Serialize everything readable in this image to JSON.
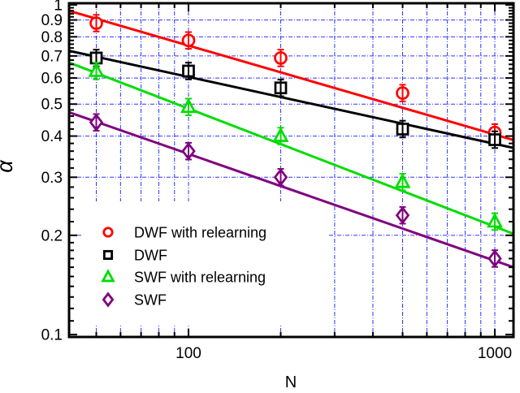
{
  "figure": {
    "background": "#ffffff"
  },
  "chart_data": {
    "type": "scatter",
    "title": "",
    "xlabel": "N",
    "ylabel": "α",
    "x_scale": "log",
    "y_scale": "log",
    "x_range": [
      40.8,
      1155
    ],
    "y_range": [
      0.098,
      1.01
    ],
    "x_major_ticks": [
      {
        "value": 100,
        "label": "100"
      },
      {
        "value": 1000,
        "label": "1000"
      }
    ],
    "x_minor_ticks": [
      50,
      60,
      70,
      80,
      90,
      200,
      300,
      400,
      500,
      600,
      700,
      800,
      900
    ],
    "y_major_ticks": [
      {
        "value": 1.0,
        "label": "1"
      },
      {
        "value": 0.9,
        "label": "0.9"
      },
      {
        "value": 0.8,
        "label": "0.8"
      },
      {
        "value": 0.7,
        "label": "0.7"
      },
      {
        "value": 0.6,
        "label": "0.6"
      },
      {
        "value": 0.5,
        "label": "0.5"
      },
      {
        "value": 0.4,
        "label": "0.4"
      },
      {
        "value": 0.3,
        "label": "0.3"
      },
      {
        "value": 0.2,
        "label": "0.2"
      },
      {
        "value": 0.1,
        "label": "0.1"
      }
    ],
    "y_minor_rule": [
      {
        "from": 0.1,
        "to": 0.2,
        "step": 0.01
      },
      {
        "from": 0.2,
        "to": 1.0,
        "step": 0.02
      }
    ],
    "grid": {
      "color": "#3333ff",
      "style": "dash-dot",
      "x": [
        50,
        60,
        70,
        80,
        90,
        100,
        200,
        300,
        400,
        500,
        600,
        700,
        800,
        900,
        1000
      ],
      "y": [
        0.2,
        0.3,
        0.4,
        0.5,
        0.6,
        0.7,
        0.8,
        0.9
      ]
    },
    "x": [
      50,
      100,
      200,
      500,
      1000
    ],
    "err_pct": 6,
    "series": [
      {
        "name": "DWF with relearning",
        "marker": "circle",
        "color": "#ff0000",
        "values": [
          0.88,
          0.78,
          0.69,
          0.54,
          0.41
        ],
        "fit": {
          "amplitude": 2.61,
          "exponent": -0.27
        }
      },
      {
        "name": "DWF",
        "marker": "square",
        "color": "#000000",
        "values": [
          0.69,
          0.63,
          0.56,
          0.42,
          0.39
        ],
        "fit": {
          "amplitude": 1.54,
          "exponent": -0.203
        }
      },
      {
        "name": "SWF with relearning",
        "marker": "triangle",
        "color": "#00dd00",
        "values": [
          0.63,
          0.49,
          0.4,
          0.29,
          0.22
        ],
        "fit": {
          "amplitude": 2.52,
          "exponent": -0.358
        }
      },
      {
        "name": "SWF",
        "marker": "diamond",
        "color": "#800080",
        "values": [
          0.44,
          0.36,
          0.3,
          0.23,
          0.17
        ],
        "fit": {
          "amplitude": 1.57,
          "exponent": -0.324
        }
      }
    ],
    "legend": {
      "position": "lower-left"
    }
  }
}
